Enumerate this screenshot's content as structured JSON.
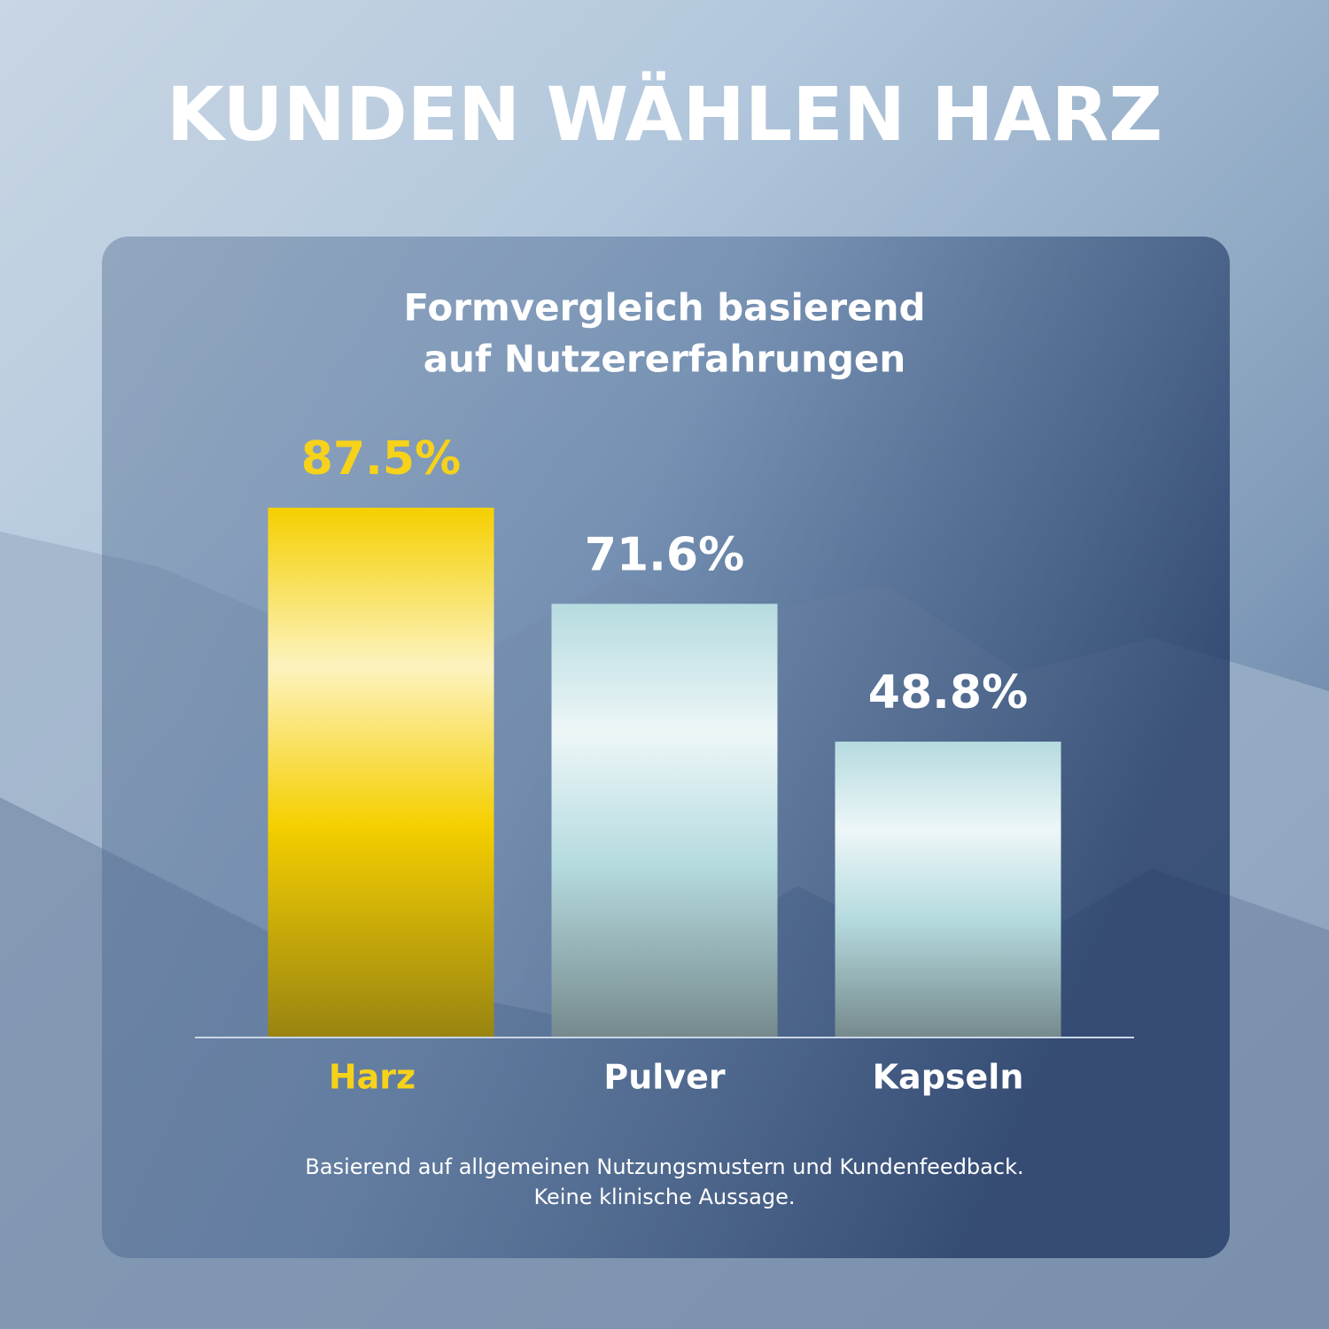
{
  "chart_data": {
    "type": "bar",
    "title": "KUNDEN WÄHLEN HARZ",
    "subtitle": [
      "Formvergleich basierend",
      "auf Nutzererfahrungen"
    ],
    "categories": [
      "Harz",
      "Pulver",
      "Kapseln"
    ],
    "values": [
      87.5,
      71.6,
      48.8
    ],
    "value_labels": [
      "87.5%",
      "71.6%",
      "48.8%"
    ],
    "colors": [
      "#f5cf00",
      "#b5dbe0",
      "#b5dbe0"
    ],
    "label_colors": [
      "#f7d21a",
      "#ffffff",
      "#ffffff"
    ],
    "note": [
      "Basierend auf allgemeinen Nutzungsmustern und Kundenfeedback.",
      "Keine klinische Aussage."
    ]
  }
}
